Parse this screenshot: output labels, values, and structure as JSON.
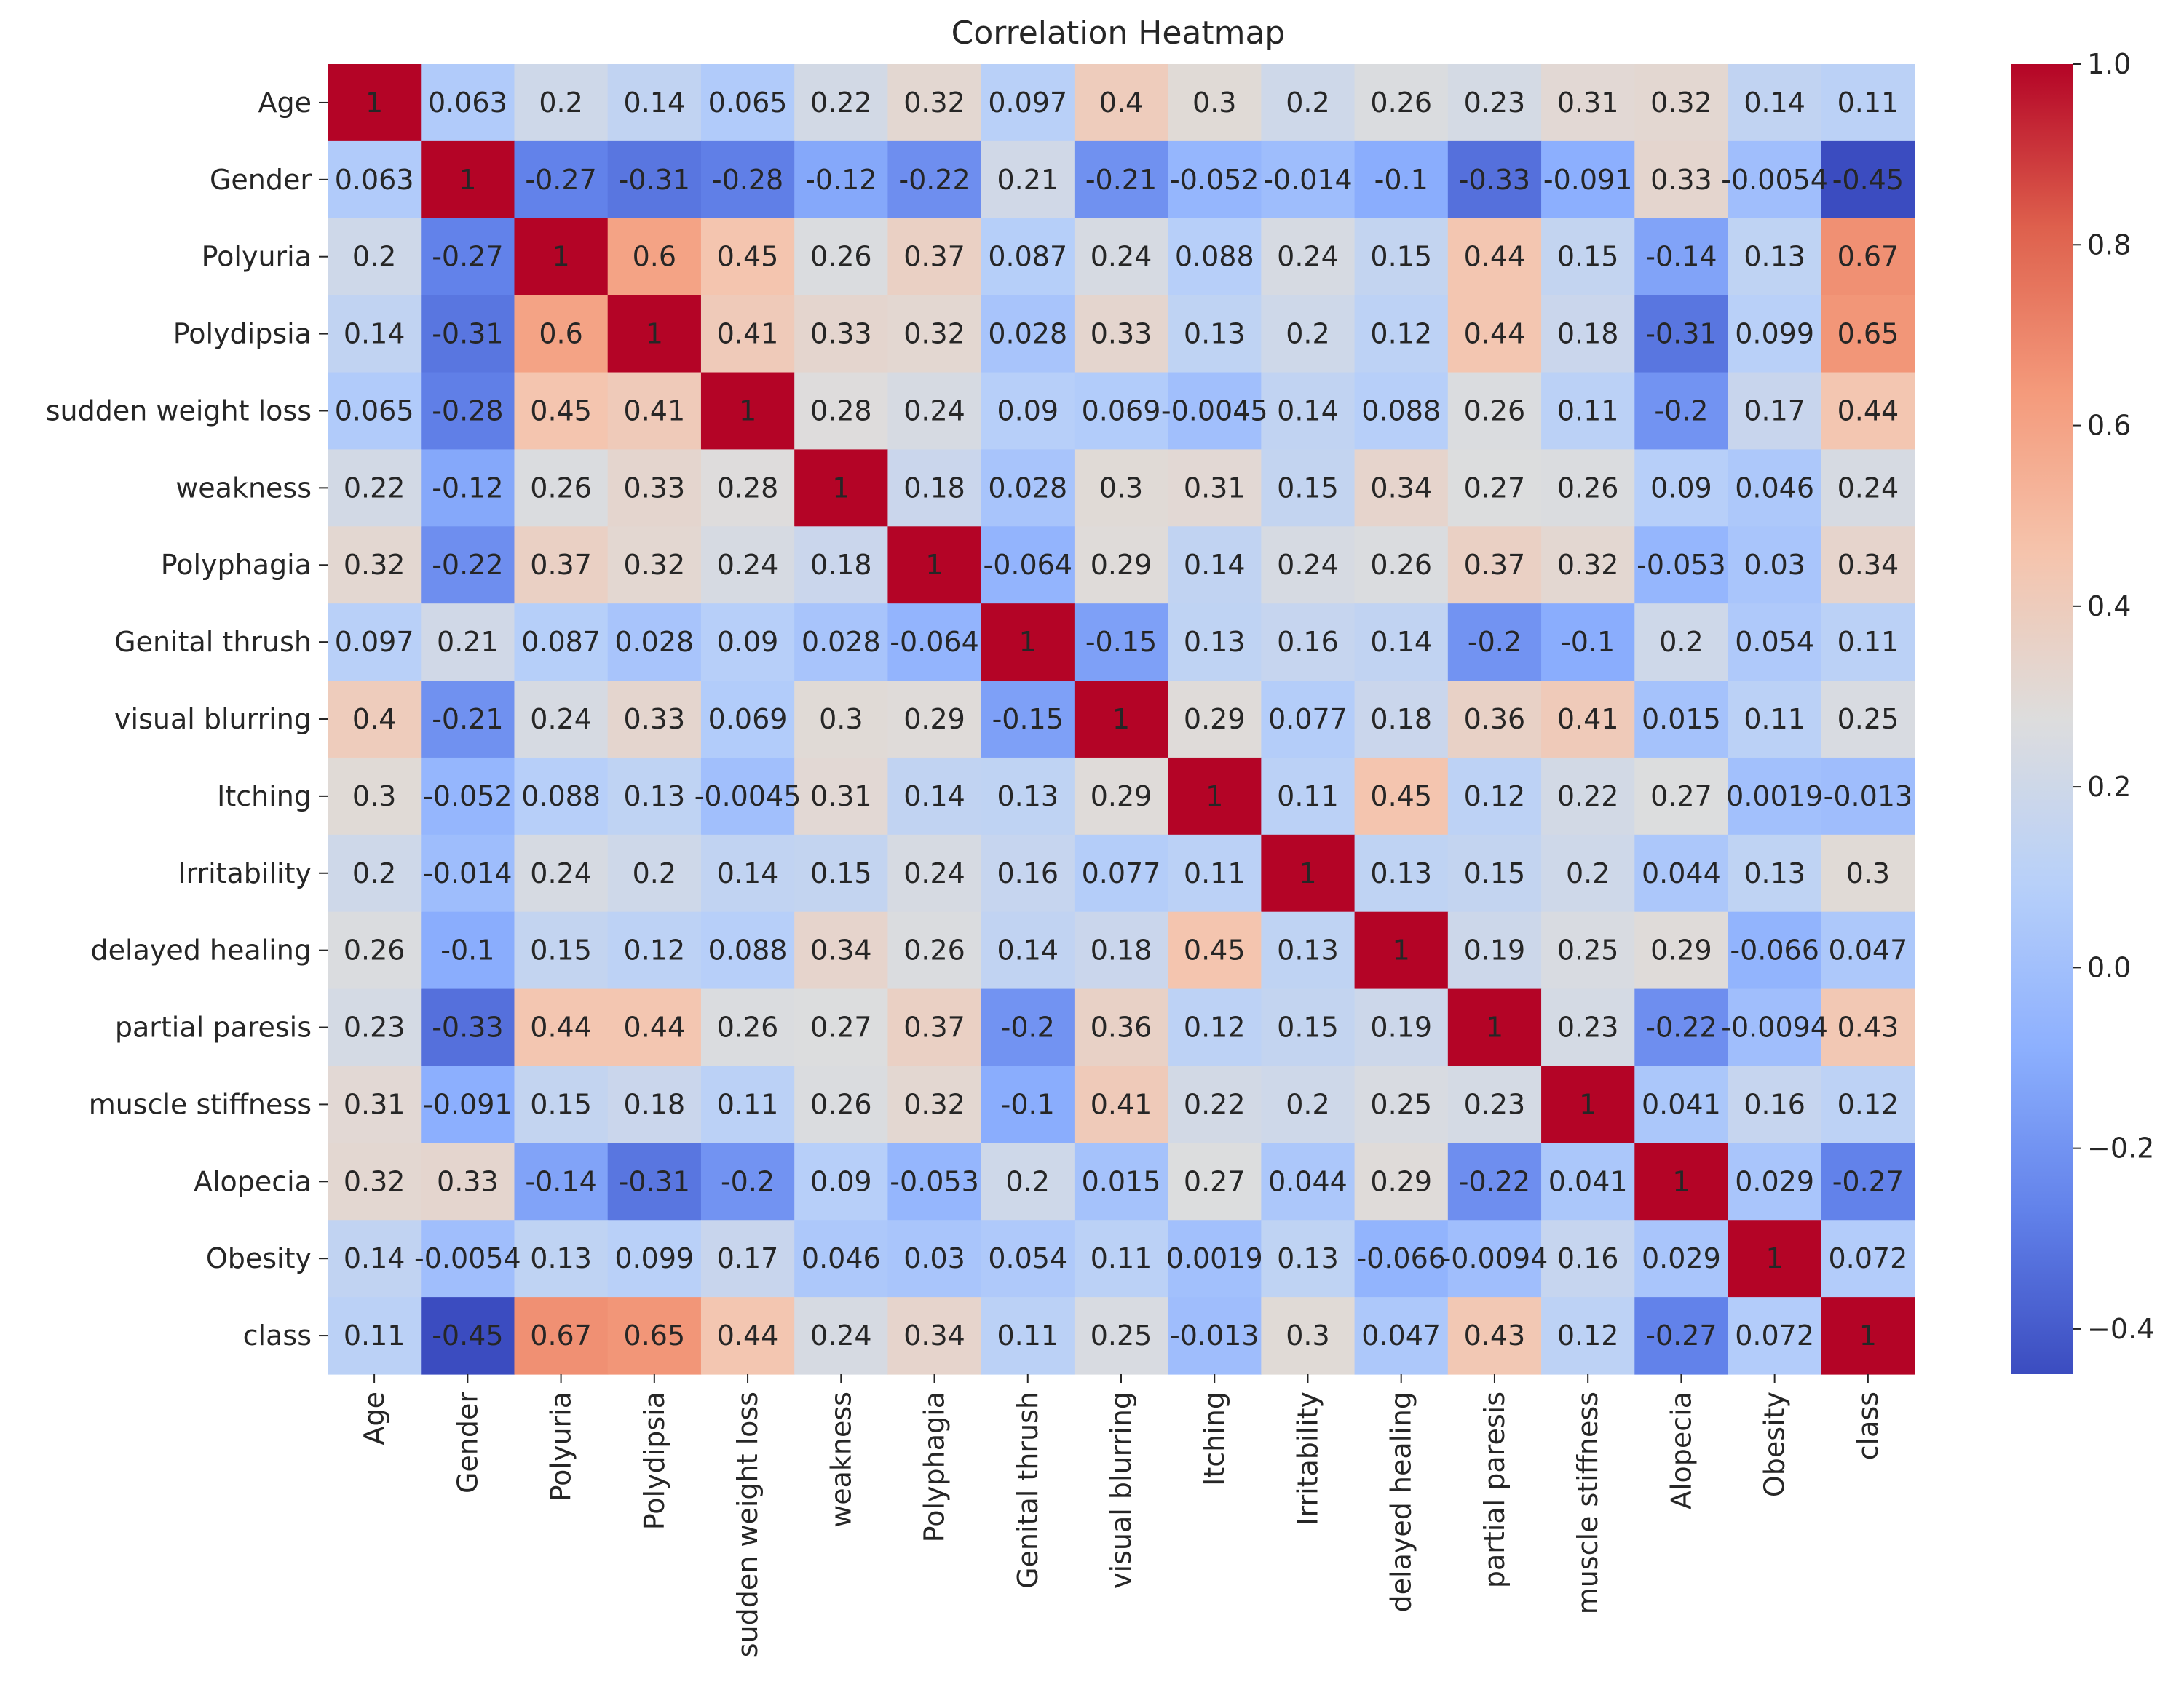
{
  "chart_data": {
    "type": "heatmap",
    "title": "Correlation Heatmap",
    "xlabel": "",
    "ylabel": "",
    "labels": [
      "Age",
      "Gender",
      "Polyuria",
      "Polydipsia",
      "sudden weight loss",
      "weakness",
      "Polyphagia",
      "Genital thrush",
      "visual blurring",
      "Itching",
      "Irritability",
      "delayed healing",
      "partial paresis",
      "muscle stiffness",
      "Alopecia",
      "Obesity",
      "class"
    ],
    "matrix": [
      [
        1,
        0.063,
        0.2,
        0.14,
        0.065,
        0.22,
        0.32,
        0.097,
        0.4,
        0.3,
        0.2,
        0.26,
        0.23,
        0.31,
        0.32,
        0.14,
        0.11
      ],
      [
        0.063,
        1,
        -0.27,
        -0.31,
        -0.28,
        -0.12,
        -0.22,
        0.21,
        -0.21,
        -0.052,
        -0.014,
        -0.1,
        -0.33,
        -0.091,
        0.33,
        -0.0054,
        -0.45
      ],
      [
        0.2,
        -0.27,
        1,
        0.6,
        0.45,
        0.26,
        0.37,
        0.087,
        0.24,
        0.088,
        0.24,
        0.15,
        0.44,
        0.15,
        -0.14,
        0.13,
        0.67
      ],
      [
        0.14,
        -0.31,
        0.6,
        1,
        0.41,
        0.33,
        0.32,
        0.028,
        0.33,
        0.13,
        0.2,
        0.12,
        0.44,
        0.18,
        -0.31,
        0.099,
        0.65
      ],
      [
        0.065,
        -0.28,
        0.45,
        0.41,
        1,
        0.28,
        0.24,
        0.09,
        0.069,
        -0.0045,
        0.14,
        0.088,
        0.26,
        0.11,
        -0.2,
        0.17,
        0.44
      ],
      [
        0.22,
        -0.12,
        0.26,
        0.33,
        0.28,
        1,
        0.18,
        0.028,
        0.3,
        0.31,
        0.15,
        0.34,
        0.27,
        0.26,
        0.09,
        0.046,
        0.24
      ],
      [
        0.32,
        -0.22,
        0.37,
        0.32,
        0.24,
        0.18,
        1,
        -0.064,
        0.29,
        0.14,
        0.24,
        0.26,
        0.37,
        0.32,
        -0.053,
        0.03,
        0.34
      ],
      [
        0.097,
        0.21,
        0.087,
        0.028,
        0.09,
        0.028,
        -0.064,
        1,
        -0.15,
        0.13,
        0.16,
        0.14,
        -0.2,
        -0.1,
        0.2,
        0.054,
        0.11
      ],
      [
        0.4,
        -0.21,
        0.24,
        0.33,
        0.069,
        0.3,
        0.29,
        -0.15,
        1,
        0.29,
        0.077,
        0.18,
        0.36,
        0.41,
        0.015,
        0.11,
        0.25
      ],
      [
        0.3,
        -0.052,
        0.088,
        0.13,
        -0.0045,
        0.31,
        0.14,
        0.13,
        0.29,
        1,
        0.11,
        0.45,
        0.12,
        0.22,
        0.27,
        0.0019,
        -0.013
      ],
      [
        0.2,
        -0.014,
        0.24,
        0.2,
        0.14,
        0.15,
        0.24,
        0.16,
        0.077,
        0.11,
        1,
        0.13,
        0.15,
        0.2,
        0.044,
        0.13,
        0.3
      ],
      [
        0.26,
        -0.1,
        0.15,
        0.12,
        0.088,
        0.34,
        0.26,
        0.14,
        0.18,
        0.45,
        0.13,
        1,
        0.19,
        0.25,
        0.29,
        -0.066,
        0.047
      ],
      [
        0.23,
        -0.33,
        0.44,
        0.44,
        0.26,
        0.27,
        0.37,
        -0.2,
        0.36,
        0.12,
        0.15,
        0.19,
        1,
        0.23,
        -0.22,
        -0.0094,
        0.43
      ],
      [
        0.31,
        -0.091,
        0.15,
        0.18,
        0.11,
        0.26,
        0.32,
        -0.1,
        0.41,
        0.22,
        0.2,
        0.25,
        0.23,
        1,
        0.041,
        0.16,
        0.12
      ],
      [
        0.32,
        0.33,
        -0.14,
        -0.31,
        -0.2,
        0.09,
        -0.053,
        0.2,
        0.015,
        0.27,
        0.044,
        0.29,
        -0.22,
        0.041,
        1,
        0.029,
        -0.27
      ],
      [
        0.14,
        -0.0054,
        0.13,
        0.099,
        0.17,
        0.046,
        0.03,
        0.054,
        0.11,
        0.0019,
        0.13,
        -0.066,
        -0.0094,
        0.16,
        0.029,
        1,
        0.072
      ],
      [
        0.11,
        -0.45,
        0.67,
        0.65,
        0.44,
        0.24,
        0.34,
        0.11,
        0.25,
        -0.013,
        0.3,
        0.047,
        0.43,
        0.12,
        -0.27,
        0.072,
        1
      ]
    ],
    "vmin": -0.45,
    "vmax": 1.0,
    "colormap": "coolwarm",
    "colorbar": {
      "ticks": [
        -0.4,
        -0.2,
        0.0,
        0.2,
        0.4,
        0.6,
        0.8,
        1.0
      ],
      "tick_labels": [
        "−0.4",
        "−0.2",
        "0.0",
        "0.2",
        "0.4",
        "0.6",
        "0.8",
        "1.0"
      ],
      "position": "right"
    },
    "annotated": true,
    "grid": false
  }
}
